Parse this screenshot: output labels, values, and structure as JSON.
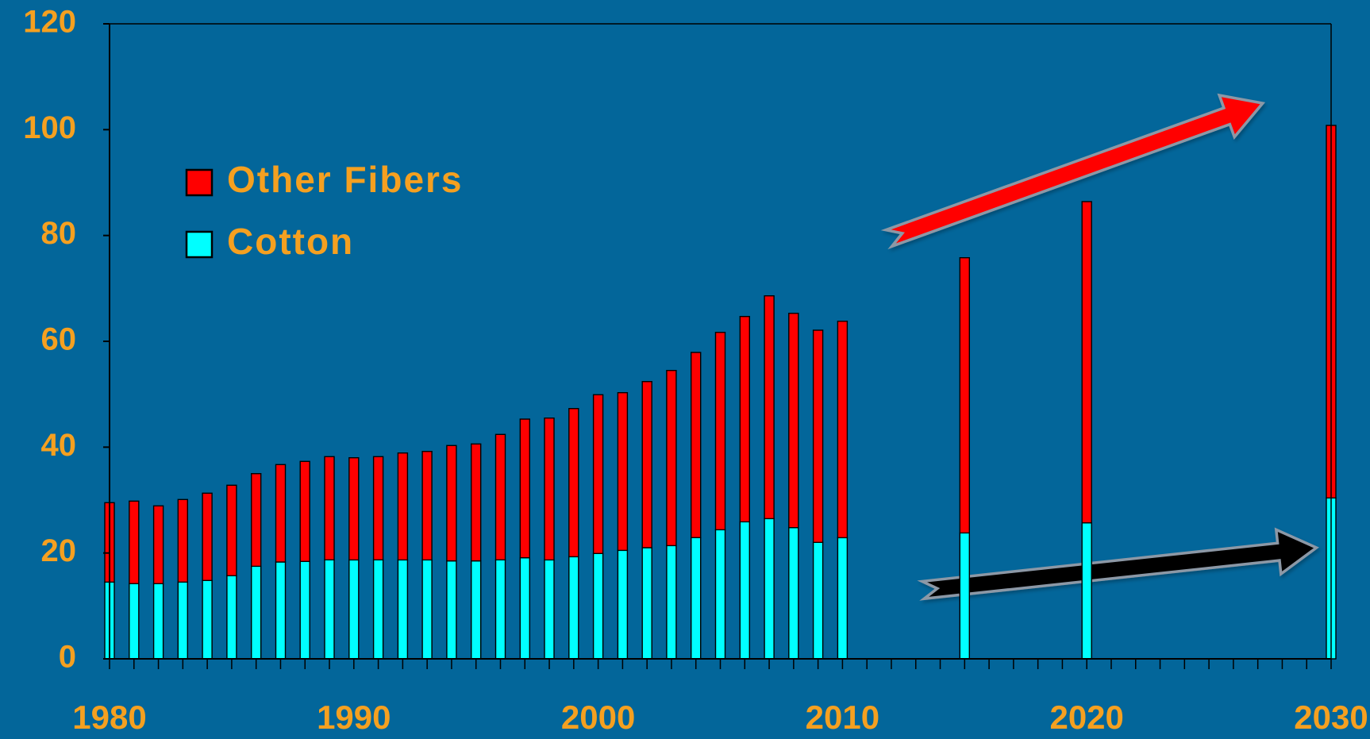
{
  "chart_data": {
    "type": "bar",
    "stacked": true,
    "title": "",
    "xlabel": "",
    "ylabel": "",
    "ylim": [
      0,
      120
    ],
    "xlim": [
      1980,
      2030
    ],
    "y_ticks": [
      "0",
      "20",
      "40",
      "60",
      "80",
      "100",
      "120"
    ],
    "x_tick_labels": [
      "1980",
      "1990",
      "2000",
      "2010",
      "2020",
      "2030"
    ],
    "grid": false,
    "legend_position": "upper-left",
    "background_color": "#03669A",
    "text_color": "#F5A020",
    "x": [
      1980,
      1981,
      1982,
      1983,
      1984,
      1985,
      1986,
      1987,
      1988,
      1989,
      1990,
      1991,
      1992,
      1993,
      1994,
      1995,
      1996,
      1997,
      1998,
      1999,
      2000,
      2001,
      2002,
      2003,
      2004,
      2005,
      2006,
      2007,
      2008,
      2009,
      2010,
      2015,
      2020,
      2030
    ],
    "series": [
      {
        "name": "Cotton",
        "color": "#00FFFF",
        "values": [
          14.5,
          14.2,
          14.2,
          14.5,
          14.8,
          15.7,
          17.5,
          18.3,
          18.4,
          18.7,
          18.7,
          18.7,
          18.7,
          18.7,
          18.5,
          18.5,
          18.7,
          19.1,
          18.7,
          19.3,
          19.9,
          20.5,
          21.0,
          21.4,
          22.9,
          24.4,
          25.9,
          26.5,
          24.8,
          22.0,
          22.9,
          23.8,
          25.7,
          30.4
        ]
      },
      {
        "name": "Other Fibers",
        "color": "#FF0000",
        "values": [
          15.0,
          15.6,
          14.7,
          15.6,
          16.5,
          17.1,
          17.5,
          18.4,
          18.9,
          19.5,
          19.3,
          19.5,
          20.2,
          20.5,
          21.8,
          22.1,
          23.7,
          26.2,
          26.8,
          28.0,
          30.0,
          29.8,
          31.4,
          33.1,
          35.0,
          37.3,
          38.8,
          42.1,
          40.5,
          40.1,
          40.9,
          52.0,
          60.7,
          70.4
        ]
      }
    ],
    "annotations": [
      {
        "kind": "arrow",
        "color": "#FF0000",
        "meaning": "other-fibers-growth-trend",
        "from": [
          2011.9,
          79.5
        ],
        "to": [
          2027.2,
          105
        ]
      },
      {
        "kind": "arrow",
        "color": "#000000",
        "meaning": "cotton-growth-trend",
        "from": [
          2013.3,
          13
        ],
        "to": [
          2029.4,
          21
        ]
      }
    ]
  }
}
